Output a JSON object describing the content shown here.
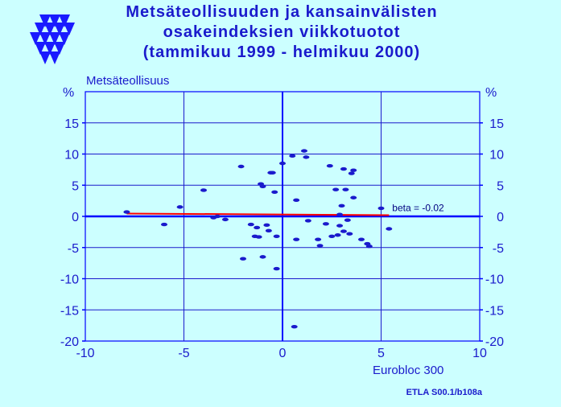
{
  "title": {
    "line1": "Metsäteollisuuden  ja  kansainvälisten",
    "line2": "osakeindeksien  viikkotuotot",
    "line3": "(tammikuu 1999 - helmikuu 2000)"
  },
  "source_label": "ETLA S00.1/b108a",
  "logo": {
    "icon": "etla-triangles-logo-icon",
    "color": "#1a1aff"
  },
  "colors": {
    "background": "#ccffff",
    "text": "#1a1acc",
    "points": "#1a1acc",
    "axis": "#0000ff",
    "regression": "#ff0000"
  },
  "chart_data": {
    "type": "scatter",
    "title": "Metsäteollisuuden  ja  kansainvälisten osakeindeksien  viikkotuotot (tammikuu 1999 - helmikuu 2000)",
    "xlabel": "Eurobloc 300",
    "ylabel": "Metsäteollisuus",
    "x_unit": "",
    "y_unit_left": "%",
    "y_unit_right": "%",
    "xlim": [
      -10,
      10
    ],
    "ylim": [
      -20,
      20
    ],
    "x_ticks": [
      -10,
      -5,
      0,
      5,
      10
    ],
    "y_ticks": [
      -20,
      -15,
      -10,
      -5,
      0,
      5,
      10,
      15
    ],
    "grid": true,
    "points": [
      {
        "x": -7.9,
        "y": 0.7
      },
      {
        "x": -6.0,
        "y": -1.3
      },
      {
        "x": -5.2,
        "y": 1.5
      },
      {
        "x": -4.0,
        "y": 4.2
      },
      {
        "x": -3.5,
        "y": -0.2
      },
      {
        "x": -3.3,
        "y": 0.0
      },
      {
        "x": -2.9,
        "y": -0.5
      },
      {
        "x": -2.1,
        "y": 8.0
      },
      {
        "x": -2.0,
        "y": -6.8
      },
      {
        "x": -1.6,
        "y": -1.3
      },
      {
        "x": -1.4,
        "y": -3.2
      },
      {
        "x": -1.3,
        "y": -1.8
      },
      {
        "x": -1.2,
        "y": -3.3
      },
      {
        "x": -1.1,
        "y": 5.2
      },
      {
        "x": -1.0,
        "y": 4.8
      },
      {
        "x": -1.0,
        "y": -6.5
      },
      {
        "x": -0.8,
        "y": -1.4
      },
      {
        "x": -0.7,
        "y": -2.3
      },
      {
        "x": -0.6,
        "y": 7.0
      },
      {
        "x": -0.5,
        "y": 7.0
      },
      {
        "x": -0.4,
        "y": 3.9
      },
      {
        "x": -0.3,
        "y": -3.2
      },
      {
        "x": -0.3,
        "y": -8.4
      },
      {
        "x": 0.0,
        "y": 8.5
      },
      {
        "x": 0.5,
        "y": 9.7
      },
      {
        "x": 0.6,
        "y": -17.7
      },
      {
        "x": 0.7,
        "y": 2.6
      },
      {
        "x": 0.7,
        "y": -3.7
      },
      {
        "x": 1.1,
        "y": 10.5
      },
      {
        "x": 1.2,
        "y": 9.5
      },
      {
        "x": 1.3,
        "y": -0.7
      },
      {
        "x": 1.8,
        "y": -3.7
      },
      {
        "x": 1.9,
        "y": -4.7
      },
      {
        "x": 2.2,
        "y": -1.2
      },
      {
        "x": 2.4,
        "y": 8.1
      },
      {
        "x": 2.5,
        "y": -3.2
      },
      {
        "x": 2.7,
        "y": 4.3
      },
      {
        "x": 2.8,
        "y": -3.0
      },
      {
        "x": 2.9,
        "y": 0.3
      },
      {
        "x": 2.9,
        "y": -1.5
      },
      {
        "x": 3.0,
        "y": 1.7
      },
      {
        "x": 3.1,
        "y": 7.6
      },
      {
        "x": 3.1,
        "y": -2.4
      },
      {
        "x": 3.2,
        "y": 4.3
      },
      {
        "x": 3.3,
        "y": -0.6
      },
      {
        "x": 3.4,
        "y": -2.8
      },
      {
        "x": 3.5,
        "y": 6.9
      },
      {
        "x": 3.6,
        "y": 7.4
      },
      {
        "x": 3.6,
        "y": 3.0
      },
      {
        "x": 4.0,
        "y": -3.7
      },
      {
        "x": 4.3,
        "y": -4.4
      },
      {
        "x": 4.4,
        "y": -4.8
      },
      {
        "x": 5.0,
        "y": 1.3
      },
      {
        "x": 5.4,
        "y": -2.0
      }
    ],
    "regression": {
      "label": "beta = -0.02",
      "x_range": [
        -7.9,
        5.4
      ],
      "slope": -0.02,
      "intercept": 0.3
    }
  }
}
